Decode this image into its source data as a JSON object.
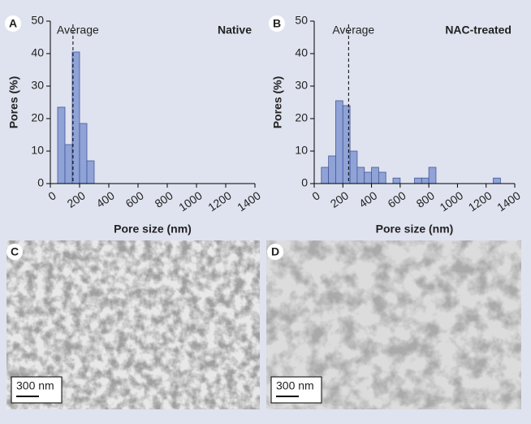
{
  "chart_data": [
    {
      "type": "histogram",
      "panel_label": "A",
      "title": "Native",
      "xlabel": "Pore size (nm)",
      "ylabel": "Pores (%)",
      "bins": [
        50,
        100,
        150,
        200,
        250,
        300
      ],
      "counts": [
        23.5,
        12,
        40.5,
        18.5,
        7
      ],
      "color": "#8fa3d6",
      "edge_color": "#46569a",
      "xlim": [
        0,
        1400
      ],
      "xticks": [
        0,
        200,
        400,
        600,
        800,
        1000,
        1200,
        1400
      ],
      "ylim": [
        0,
        50
      ],
      "yticks": [
        0,
        10,
        20,
        30,
        40,
        50
      ],
      "annotation": {
        "text": "Average",
        "value": 155
      }
    },
    {
      "type": "histogram",
      "panel_label": "B",
      "title": "NAC-treated",
      "xlabel": "Pore size (nm)",
      "ylabel": "Pores (%)",
      "bins": [
        50,
        100,
        150,
        200,
        250,
        300,
        350,
        400,
        450,
        500,
        550,
        600,
        650,
        700,
        750,
        800,
        850,
        900,
        950,
        1000,
        1050,
        1100,
        1150,
        1200,
        1250,
        1300
      ],
      "counts": [
        5,
        8.5,
        25.5,
        24,
        10,
        5,
        3.5,
        5,
        3.5,
        0,
        1.7,
        0,
        0,
        1.7,
        1.7,
        5,
        0,
        0,
        0,
        0,
        0,
        0,
        0,
        0,
        1.7
      ],
      "color": "#8fa3d6",
      "edge_color": "#46569a",
      "xlim": [
        0,
        1400
      ],
      "xticks": [
        0,
        200,
        400,
        600,
        800,
        1000,
        1200,
        1400
      ],
      "ylim": [
        0,
        50
      ],
      "yticks": [
        0,
        10,
        20,
        30,
        40,
        50
      ],
      "annotation": {
        "text": "Average",
        "value": 240
      }
    }
  ],
  "images": [
    {
      "panel_label": "C",
      "scale_bar": "300 nm"
    },
    {
      "panel_label": "D",
      "scale_bar": "300 nm"
    }
  ]
}
